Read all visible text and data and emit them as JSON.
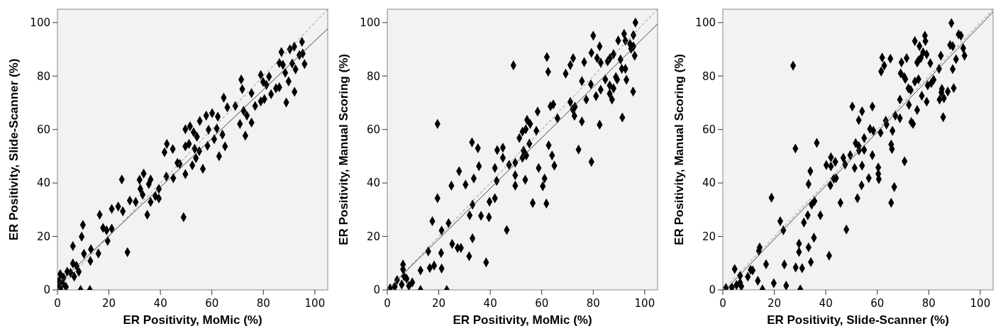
{
  "chart_data": [
    {
      "type": "scatter",
      "xlabel": "ER Positivity, MoMic (%)",
      "ylabel": "ER Positivity, Slide-Scanner (%)",
      "xlim": [
        0,
        105
      ],
      "ylim": [
        0,
        105
      ],
      "xticks": [
        0,
        20,
        40,
        60,
        80,
        100
      ],
      "yticks": [
        0,
        20,
        40,
        60,
        80,
        100
      ],
      "grid": false,
      "series": [
        {
          "type": "scatter",
          "marker": "diamond",
          "color": "#000000",
          "x": [
            95,
            92,
            90.3,
            87,
            95.3,
            94,
            96,
            86.2,
            87.6,
            91.2,
            92.5,
            88.5,
            79,
            82.2,
            71.4,
            79.9,
            81.2,
            84.9,
            86.2,
            89.8,
            92.1,
            71.8,
            75.4,
            83,
            80.4,
            79,
            76.8,
            88.9,
            64.6,
            66,
            69.1,
            57.8,
            60.1,
            62.3,
            55.3,
            72.3,
            73.6,
            70.9,
            75.4,
            73,
            49.7,
            51.5,
            52.9,
            54.2,
            58.7,
            61.9,
            64.1,
            60.9,
            58.3,
            65.1,
            62.8,
            49.7,
            51.1,
            53.3,
            55.1,
            53.8,
            52.4,
            56.5,
            49.7,
            42.5,
            41.6,
            44.8,
            46.6,
            47.5,
            42.3,
            45,
            39.4,
            38,
            39.4,
            36.2,
            33.5,
            31.9,
            36.2,
            35.5,
            32.2,
            33.1,
            28.1,
            30.4,
            25,
            34.9,
            21.1,
            23.6,
            25.4,
            16.4,
            17.7,
            19.1,
            21.1,
            19.5,
            49,
            9.9,
            9.4,
            6,
            10.3,
            13,
            15.9,
            27.2,
            12.8,
            6,
            7.4,
            8.3,
            5.1,
            6.5,
            3.8,
            2.4,
            1.1,
            0.6,
            2,
            3.3,
            0.2,
            1.1,
            9,
            12.6
          ],
          "values": [
            92.8,
            91,
            90,
            89,
            88.4,
            87.8,
            84.5,
            84.9,
            84.2,
            84.7,
            82.5,
            81.2,
            80.4,
            79.8,
            78.7,
            77.8,
            76.7,
            75.4,
            75.8,
            78,
            74.1,
            75.1,
            73.6,
            73.2,
            71.4,
            70.5,
            68.8,
            70.1,
            71.9,
            68.3,
            68.8,
            65.2,
            66.1,
            64.8,
            63.2,
            67,
            65.2,
            62.1,
            62.6,
            57.7,
            60.1,
            61.2,
            59,
            57.3,
            59.9,
            60.4,
            58.1,
            56.4,
            53.9,
            53.7,
            50,
            53.7,
            54.6,
            52.8,
            51.9,
            49.3,
            46.6,
            45.3,
            43.3,
            54.6,
            51.5,
            52.7,
            47.5,
            47.1,
            42.4,
            41.8,
            37.8,
            35.1,
            34.2,
            32.9,
            43.5,
            41.2,
            41.3,
            39.6,
            37.8,
            35.6,
            33.4,
            32.9,
            41.3,
            28.1,
            30.3,
            31.2,
            29.4,
            28.1,
            23.2,
            22.3,
            22.9,
            18.3,
            27.2,
            24.3,
            19.9,
            16.4,
            13.5,
            15.2,
            13.6,
            14.1,
            10.8,
            9.9,
            9,
            6.8,
            6.4,
            5,
            6.8,
            4.6,
            5.9,
            3.3,
            2.4,
            1.1,
            1.1,
            0.2,
            0,
            0
          ]
        },
        {
          "type": "line",
          "line_style": "solid",
          "color": "#444444",
          "x": [
            0,
            105
          ],
          "values": [
            2,
            97.7
          ]
        },
        {
          "type": "line",
          "line_style": "dashed",
          "color": "#888888",
          "x": [
            0,
            105
          ],
          "values": [
            0,
            105
          ]
        }
      ]
    },
    {
      "type": "scatter",
      "xlabel": "ER Positivity, MoMic (%)",
      "ylabel": "ER Positivity, Manual Scoring (%)",
      "xlim": [
        0,
        105
      ],
      "ylim": [
        0,
        105
      ],
      "xticks": [
        0,
        20,
        40,
        60,
        80,
        100
      ],
      "yticks": [
        0,
        20,
        40,
        60,
        80,
        100
      ],
      "grid": false,
      "series": [
        {
          "type": "scatter",
          "marker": "diamond",
          "color": "#000000",
          "x": [
            96.4,
            80,
            92,
            95.6,
            89.7,
            92.5,
            94.3,
            95.6,
            94.7,
            82.5,
            96.1,
            62,
            72.2,
            79.3,
            81.5,
            82.9,
            76.5,
            71.1,
            85.6,
            87.9,
            86.5,
            90.6,
            49,
            62.5,
            69.3,
            91.1,
            92.5,
            88.8,
            89.3,
            92.9,
            75.6,
            79.1,
            84.7,
            82.9,
            86.4,
            87.9,
            95.5,
            86.4,
            87.3,
            81.1,
            77.3,
            71.1,
            72.9,
            72,
            63.4,
            64.5,
            72.7,
            66.1,
            58.4,
            75.6,
            82.5,
            91.3,
            54.3,
            55.5,
            53.8,
            52.5,
            51.3,
            57.9,
            55.2,
            52.9,
            54,
            52.5,
            62.7,
            64,
            64.9,
            74.3,
            79.3,
            49.7,
            47.3,
            44.9,
            42.7,
            44.9,
            41.8,
            49.7,
            42.5,
            58.8,
            53.6,
            61.1,
            60.4,
            49.7,
            56.5,
            61.8,
            32.9,
            35.2,
            35.6,
            33.6,
            27.9,
            24.9,
            30.4,
            19.5,
            41.8,
            39.7,
            33.1,
            32,
            36.4,
            39.5,
            19.5,
            17.5,
            23.8,
            21.1,
            46.4,
            33.1,
            25.2,
            27.3,
            28.6,
            15.9,
            20.9,
            31.8,
            38.4,
            18.2,
            16.5,
            21.1,
            12.9,
            6.1,
            6.1,
            6.5,
            7.5,
            3.8,
            9.7,
            8.4,
            5.6,
            2.9,
            1.1,
            12.9,
            23.1
          ],
          "values": [
            100,
            95.1,
            95.8,
            95.3,
            93.3,
            93.2,
            92,
            91.1,
            90.2,
            91.1,
            87.6,
            87.1,
            86.7,
            88.7,
            86.7,
            85,
            85.2,
            84.1,
            85.5,
            88.2,
            86.7,
            86.2,
            84,
            81.6,
            80.9,
            82.7,
            82.7,
            79.6,
            78.7,
            78.6,
            78.1,
            76.9,
            78.7,
            74.9,
            76.5,
            75.4,
            74.2,
            73.4,
            71.2,
            72.5,
            71.2,
            70.3,
            68.5,
            67.6,
            68.7,
            69.4,
            65.1,
            64.2,
            66.7,
            63,
            61.8,
            64.5,
            63.6,
            62.1,
            60.1,
            59.2,
            56.8,
            59.5,
            54.7,
            52.1,
            50.3,
            49.4,
            54.1,
            50.3,
            46.5,
            52.5,
            47.9,
            47.6,
            46.8,
            53.2,
            52.3,
            49.4,
            45.6,
            42.9,
            40.8,
            45.6,
            41.2,
            41.7,
            38.8,
            39,
            32.5,
            32.3,
            55.2,
            53,
            46.3,
            41.7,
            44.4,
            39,
            39.4,
            62.1,
            34.3,
            33,
            31.9,
            27.9,
            27.7,
            27.2,
            34.3,
            25.7,
            25,
            22.2,
            22.4,
            19.3,
            17.2,
            15.7,
            15.7,
            14.4,
            13.8,
            12.6,
            10.3,
            9.1,
            8.2,
            8,
            7.3,
            9.5,
            7.7,
            5.1,
            4.2,
            3.7,
            2.8,
            1.5,
            2,
            1.2,
            0.6,
            0,
            0
          ]
        },
        {
          "type": "line",
          "line_style": "solid",
          "color": "#444444",
          "x": [
            2,
            105
          ],
          "values": [
            2,
            99.5
          ]
        },
        {
          "type": "line",
          "line_style": "dashed",
          "color": "#888888",
          "x": [
            0,
            105
          ],
          "values": [
            0,
            105
          ]
        }
      ]
    },
    {
      "type": "scatter",
      "xlabel": "ER Positivity, Slide-Scanner (%)",
      "ylabel": "ER Positivity, Manual Scoring (%)",
      "xlim": [
        0,
        105
      ],
      "ylim": [
        0,
        105
      ],
      "xticks": [
        0,
        20,
        40,
        60,
        80,
        100
      ],
      "yticks": [
        0,
        20,
        40,
        60,
        80,
        100
      ],
      "grid": false,
      "series": [
        {
          "type": "scatter",
          "marker": "diamond",
          "color": "#000000",
          "x": [
            88.8,
            91.6,
            92.5,
            78.5,
            74.6,
            78.7,
            76.4,
            88.3,
            89.3,
            93.4,
            77.8,
            79.2,
            93.9,
            84.7,
            61.9,
            65.1,
            71.4,
            76.9,
            76,
            75.5,
            69.4,
            80.6,
            90.6,
            62.7,
            27.3,
            84,
            89.3,
            61.5,
            69.1,
            70.5,
            70.9,
            81.9,
            81,
            79.6,
            76,
            74.6,
            72.1,
            73,
            85.1,
            84.9,
            87.4,
            89.7,
            77.3,
            79.2,
            84.2,
            85.9,
            68.8,
            72.3,
            75.5,
            85.6,
            50.3,
            58.1,
            54.1,
            52.8,
            67,
            68.8,
            73.2,
            73.9,
            63.3,
            63.6,
            61.3,
            65.9,
            57.2,
            58.5,
            54.9,
            51.6,
            52.8,
            52.9,
            54.9,
            65.4,
            65.7,
            58.1,
            36.5,
            28.2,
            49.5,
            46.8,
            42,
            43.7,
            40.2,
            42,
            47.5,
            51.2,
            54.1,
            60.4,
            60.4,
            60.6,
            56.7,
            53.9,
            52.3,
            66.6,
            65.4,
            70.6,
            34,
            33.3,
            41.8,
            43.1,
            44,
            35.6,
            34.5,
            45.7,
            37.9,
            33,
            31.5,
            18.9,
            22.3,
            23.5,
            48,
            35.4,
            29.6,
            29.6,
            33.3,
            14.3,
            14,
            41.3,
            34.2,
            16.8,
            23.9,
            28.3,
            30.8,
            4.6,
            10.8,
            11.6,
            9.7,
            6.7,
            13.6,
            19.8,
            24.6,
            15.4,
            30.1,
            6.7,
            5.3,
            3.5,
            1.2,
            7.2
          ],
          "values": [
            99.8,
            95.6,
            95.1,
            95.1,
            93.1,
            93.1,
            91.2,
            91.6,
            91.2,
            90.4,
            88.9,
            88.1,
            87.6,
            87.6,
            86.9,
            86.5,
            86.7,
            86.7,
            85.8,
            85.1,
            85.1,
            84.8,
            86.3,
            83.9,
            83.9,
            82.7,
            82.6,
            81.7,
            81,
            79.6,
            78.9,
            78.6,
            77.4,
            76.5,
            78.8,
            77.9,
            75.4,
            74.8,
            75.2,
            73.9,
            74.2,
            75.5,
            72.6,
            70.4,
            71.2,
            71.7,
            71.2,
            69.2,
            67.3,
            64.6,
            68.6,
            68.6,
            66.8,
            63.5,
            65.2,
            64.2,
            62.8,
            62.1,
            63.3,
            61.9,
            58.8,
            59.5,
            60.2,
            59.5,
            56.8,
            54.9,
            53.8,
            52.2,
            52.4,
            54.4,
            52.7,
            50.4,
            55,
            52.9,
            50.4,
            49.4,
            49.6,
            47.9,
            46.7,
            46.2,
            46.9,
            45.6,
            46.5,
            45.8,
            43.4,
            41.4,
            41.8,
            39.1,
            34.3,
            38.5,
            32.6,
            48.1,
            44.4,
            39.6,
            39.1,
            41.6,
            41.8,
            33.2,
            31.9,
            32.6,
            27.9,
            27.9,
            25.2,
            34.5,
            25.7,
            22.3,
            22.6,
            19.5,
            17.3,
            14.2,
            15.9,
            15.9,
            14.6,
            12.8,
            10.4,
            9.6,
            9.5,
            8.4,
            8.1,
            7.8,
            7.5,
            7.3,
            4.9,
            5.3,
            3.4,
            2.5,
            1.6,
            0.2,
            0.2,
            2.7,
            1.8,
            0.9,
            0.7,
            1.3
          ]
        },
        {
          "type": "line",
          "line_style": "solid",
          "color": "#444444",
          "x": [
            1,
            105
          ],
          "values": [
            0,
            104
          ]
        },
        {
          "type": "line",
          "line_style": "dashed",
          "color": "#888888",
          "x": [
            0,
            105
          ],
          "values": [
            0,
            105
          ]
        }
      ]
    }
  ]
}
